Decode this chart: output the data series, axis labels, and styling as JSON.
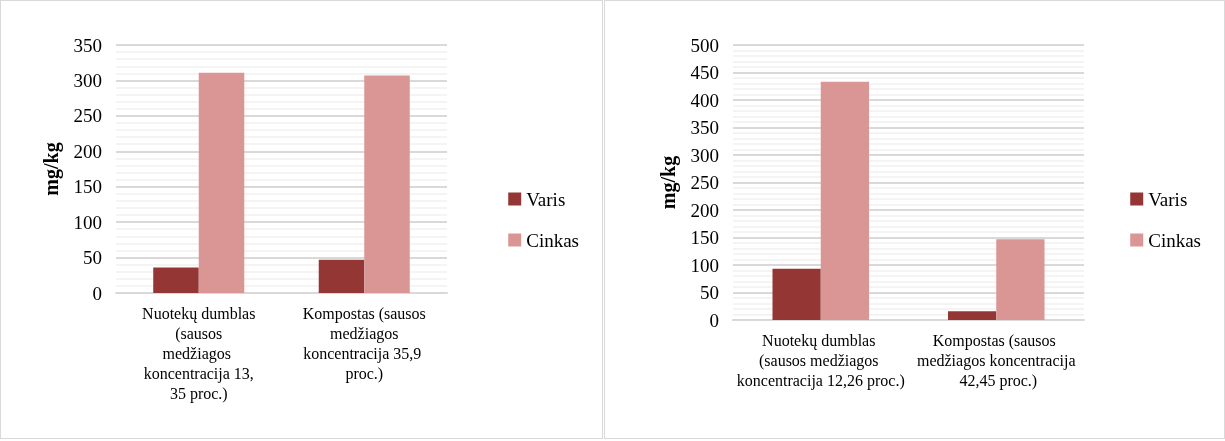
{
  "chart_data": [
    {
      "type": "bar",
      "ylabel": "mg/kg",
      "categories": [
        "Nuotekų dumblas (sausos medžiagos koncentracija 13,35 proc.)",
        "Kompostas (sausos medžiagos koncentracija 35,9 proc.)"
      ],
      "series": [
        {
          "name": "Varis",
          "color": "#943634",
          "values": [
            36,
            47
          ]
        },
        {
          "name": "Cinkas",
          "color": "#d99694",
          "values": [
            311,
            307
          ]
        }
      ],
      "ylim": [
        0,
        350
      ],
      "yticks": [
        0,
        50,
        100,
        150,
        200,
        250,
        300,
        350
      ],
      "grid": "y",
      "legend": "right"
    },
    {
      "type": "bar",
      "ylabel": "mg/kg",
      "categories": [
        "Nuotekų dumblas (sausos medžiagos koncentracija 12,26 proc.)",
        "Kompostas (sausos medžiagos koncentracija 42,45 proc.)"
      ],
      "series": [
        {
          "name": "Varis",
          "color": "#943634",
          "values": [
            93,
            16
          ]
        },
        {
          "name": "Cinkas",
          "color": "#d99694",
          "values": [
            433,
            147
          ]
        }
      ],
      "ylim": [
        0,
        500
      ],
      "yticks": [
        0,
        50,
        100,
        150,
        200,
        250,
        300,
        350,
        400,
        450,
        500
      ],
      "grid": "y",
      "legend": "right"
    }
  ]
}
